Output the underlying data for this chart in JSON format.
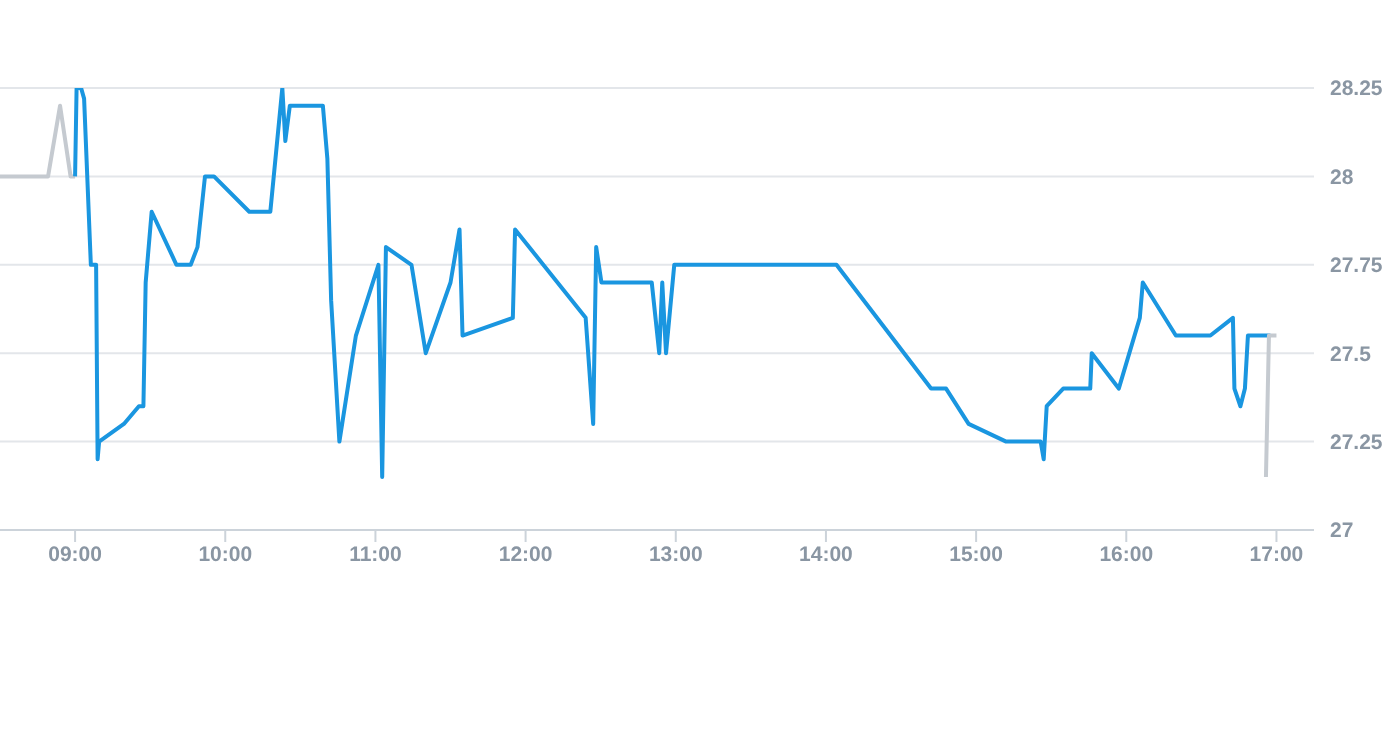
{
  "chart_data": {
    "type": "line",
    "xlim": [
      8.5,
      17.25
    ],
    "ylim": [
      27,
      28.25
    ],
    "xticks": [
      {
        "value": 9,
        "label": "09:00"
      },
      {
        "value": 10,
        "label": "10:00"
      },
      {
        "value": 11,
        "label": "11:00"
      },
      {
        "value": 12,
        "label": "12:00"
      },
      {
        "value": 13,
        "label": "13:00"
      },
      {
        "value": 14,
        "label": "14:00"
      },
      {
        "value": 15,
        "label": "15:00"
      },
      {
        "value": 16,
        "label": "16:00"
      },
      {
        "value": 17,
        "label": "17:00"
      }
    ],
    "yticks": [
      27,
      27.25,
      27.5,
      27.75,
      28,
      28.25
    ],
    "grid": "y",
    "marker": "none",
    "line_style": "solid",
    "series": [
      {
        "color": "#c5cad0",
        "x": [
          8.5,
          8.82,
          8.9,
          8.97,
          9.0
        ],
        "values": [
          28,
          28,
          28.2,
          28,
          28
        ]
      },
      {
        "color": "#1a96e0",
        "x": [
          9.0,
          9.01,
          9.04,
          9.06,
          9.105,
          9.14,
          9.15,
          9.16,
          9.325,
          9.425,
          9.455,
          9.47,
          9.51,
          9.675,
          9.77,
          9.815,
          9.865,
          9.925,
          10.16,
          10.3,
          10.38,
          10.4,
          10.43,
          10.65,
          10.68,
          10.705,
          10.76,
          10.87,
          11.02,
          11.045,
          11.07,
          11.24,
          11.335,
          11.5,
          11.56,
          11.58,
          11.915,
          11.93,
          12.4,
          12.45,
          12.47,
          12.505,
          12.84,
          12.89,
          12.91,
          12.935,
          12.99,
          14.07,
          14.7,
          14.8,
          14.95,
          15.2,
          15.43,
          15.45,
          15.47,
          15.58,
          15.76,
          15.77,
          15.95,
          16.09,
          16.11,
          16.33,
          16.56,
          16.71,
          16.72,
          16.76,
          16.79,
          16.81,
          16.96
        ],
        "values": [
          28,
          28.25,
          28.25,
          28.22,
          27.75,
          27.75,
          27.2,
          27.25,
          27.3,
          27.35,
          27.35,
          27.7,
          27.9,
          27.75,
          27.75,
          27.8,
          28,
          28,
          27.9,
          27.9,
          28.25,
          28.1,
          28.2,
          28.2,
          28.05,
          27.65,
          27.25,
          27.55,
          27.75,
          27.15,
          27.8,
          27.75,
          27.5,
          27.7,
          27.85,
          27.55,
          27.6,
          27.85,
          27.6,
          27.3,
          27.8,
          27.7,
          27.7,
          27.5,
          27.7,
          27.5,
          27.75,
          27.75,
          27.4,
          27.4,
          27.3,
          27.25,
          27.25,
          27.2,
          27.35,
          27.4,
          27.4,
          27.5,
          27.4,
          27.6,
          27.7,
          27.55,
          27.55,
          27.6,
          27.4,
          27.35,
          27.4,
          27.55,
          27.55
        ]
      },
      {
        "color": "#c5cad0",
        "x": [
          16.93,
          16.95,
          17.0
        ],
        "values": [
          27.15,
          27.55,
          27.55
        ]
      }
    ]
  }
}
